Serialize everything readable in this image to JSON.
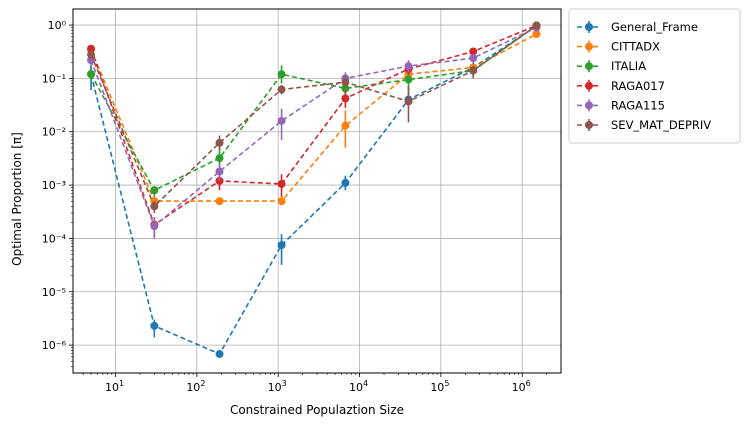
{
  "chart_data": {
    "type": "line",
    "xscale": "log",
    "yscale": "log",
    "xlabel": "Constrained Populaztion Size",
    "ylabel": "Optimal Proportion [π]",
    "xlim": [
      3,
      3000000
    ],
    "ylim": [
      3e-07,
      2
    ],
    "grid": true,
    "legend_position": "outside-right-top",
    "x_ticks": [
      {
        "value": 10,
        "base": "10",
        "exp": "1"
      },
      {
        "value": 100,
        "base": "10",
        "exp": "2"
      },
      {
        "value": 1000,
        "base": "10",
        "exp": "3"
      },
      {
        "value": 10000,
        "base": "10",
        "exp": "4"
      },
      {
        "value": 100000,
        "base": "10",
        "exp": "5"
      },
      {
        "value": 1000000,
        "base": "10",
        "exp": "6"
      }
    ],
    "y_ticks": [
      {
        "value": 1,
        "label": "10⁰"
      },
      {
        "value": 0.1,
        "label": "10⁻¹"
      },
      {
        "value": 0.01,
        "label": "10⁻²"
      },
      {
        "value": 0.001,
        "label": "10⁻³"
      },
      {
        "value": 0.0001,
        "label": "10⁻⁴"
      },
      {
        "value": 1e-05,
        "label": "10⁻⁵"
      },
      {
        "value": 1e-06,
        "label": "10⁻⁶"
      }
    ],
    "series": [
      {
        "name": "General_Frame",
        "color": "#1f77b4",
        "x": [
          5,
          30,
          190,
          1100,
          6700,
          40000,
          250000,
          1500000
        ],
        "y": [
          0.12,
          2.3e-06,
          6.8e-07,
          7.5e-05,
          0.0011,
          0.04,
          0.16,
          0.95
        ],
        "err_low": [
          0.06,
          1.4e-06,
          6.2e-07,
          3.2e-05,
          0.0008,
          0.03,
          0.13,
          0.9
        ],
        "err_high": [
          0.17,
          3e-06,
          7.5e-07,
          0.00012,
          0.0015,
          0.055,
          0.2,
          1.0
        ]
      },
      {
        "name": "CITTADX",
        "color": "#ff7f0e",
        "x": [
          5,
          30,
          190,
          1100,
          6700,
          40000,
          250000,
          1500000
        ],
        "y": [
          0.35,
          0.0005,
          0.0005,
          0.0005,
          0.013,
          0.12,
          0.16,
          0.68
        ],
        "err_low": [
          0.3,
          0.00045,
          0.00045,
          0.00045,
          0.005,
          0.1,
          0.14,
          0.63
        ],
        "err_high": [
          0.4,
          0.00055,
          0.00055,
          0.00055,
          0.025,
          0.14,
          0.18,
          0.73
        ]
      },
      {
        "name": "ITALIA",
        "color": "#2ca02c",
        "x": [
          5,
          30,
          190,
          1100,
          6700,
          40000,
          250000,
          1500000
        ],
        "y": [
          0.12,
          0.0008,
          0.0032,
          0.12,
          0.065,
          0.095,
          0.14,
          0.98
        ],
        "err_low": [
          0.09,
          0.0006,
          0.0022,
          0.08,
          0.045,
          0.06,
          0.11,
          0.93
        ],
        "err_high": [
          0.16,
          0.00095,
          0.0048,
          0.175,
          0.085,
          0.13,
          0.17,
          1.03
        ]
      },
      {
        "name": "RAGA017",
        "color": "#d62728",
        "x": [
          5,
          30,
          190,
          1100,
          6700,
          40000,
          250000,
          1500000
        ],
        "y": [
          0.36,
          0.00018,
          0.0012,
          0.00105,
          0.042,
          0.15,
          0.32,
          0.98
        ],
        "err_low": [
          0.31,
          0.00011,
          0.0008,
          0.0006,
          0.028,
          0.12,
          0.28,
          0.93
        ],
        "err_high": [
          0.41,
          0.00025,
          0.0016,
          0.0016,
          0.058,
          0.18,
          0.36,
          1.03
        ]
      },
      {
        "name": "RAGA115",
        "color": "#9467bd",
        "x": [
          5,
          30,
          190,
          1100,
          6700,
          40000,
          250000,
          1500000
        ],
        "y": [
          0.22,
          0.00017,
          0.0018,
          0.016,
          0.1,
          0.17,
          0.24,
          0.9
        ],
        "err_low": [
          0.16,
          0.0001,
          0.0012,
          0.007,
          0.075,
          0.13,
          0.2,
          0.85
        ],
        "err_high": [
          0.28,
          0.00024,
          0.0025,
          0.027,
          0.13,
          0.22,
          0.28,
          0.95
        ]
      },
      {
        "name": "SEV_MAT_DEPRIV",
        "color": "#8c564b",
        "x": [
          5,
          30,
          190,
          1100,
          6700,
          40000,
          250000,
          1500000
        ],
        "y": [
          0.28,
          0.0004,
          0.0062,
          0.062,
          0.085,
          0.037,
          0.14,
          0.98
        ],
        "err_low": [
          0.23,
          0.0003,
          0.0045,
          0.05,
          0.065,
          0.015,
          0.1,
          0.93
        ],
        "err_high": [
          0.33,
          0.0005,
          0.0085,
          0.075,
          0.11,
          0.07,
          0.17,
          1.03
        ]
      }
    ]
  }
}
